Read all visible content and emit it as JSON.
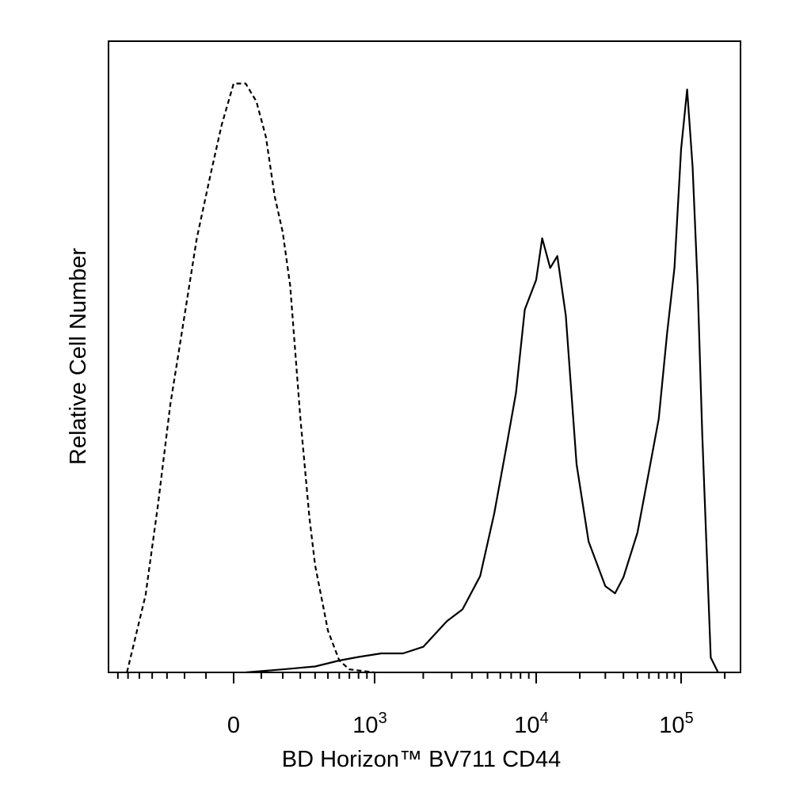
{
  "chart_data": {
    "type": "line",
    "title": "",
    "xlabel": "BD Horizon™ BV711 CD44",
    "ylabel": "Relative Cell Number",
    "x_scale": "biexponential",
    "xlim": [
      -750,
      200000
    ],
    "ylim": [
      0,
      100
    ],
    "grid": false,
    "legend": "none",
    "x_ticks": [
      {
        "value": 0,
        "label": "0"
      },
      {
        "value": 1000,
        "label": "10",
        "sup": "3"
      },
      {
        "value": 10000,
        "label": "10",
        "sup": "4"
      },
      {
        "value": 100000,
        "label": "10",
        "sup": "5"
      }
    ],
    "series": [
      {
        "style": "dashed",
        "x": [
          -610,
          -450,
          -360,
          -280,
          -200,
          -140,
          -80,
          -40,
          0,
          40,
          80,
          120,
          160,
          200,
          240,
          300,
          360,
          400,
          500,
          600,
          700,
          1000
        ],
        "y": [
          0,
          13,
          28,
          45,
          60,
          73,
          84,
          92,
          99,
          99,
          96,
          90,
          80,
          74,
          65,
          43,
          26,
          18,
          7,
          2,
          0.5,
          0
        ]
      },
      {
        "style": "solid",
        "x": [
          40,
          200,
          400,
          600,
          800,
          1100,
          1500,
          2000,
          2800,
          3500,
          4500,
          5500,
          6500,
          7500,
          8500,
          10000,
          11000,
          12500,
          14000,
          16000,
          19000,
          23000,
          30000,
          35000,
          40000,
          50000,
          60000,
          70000,
          80000,
          90000,
          100000,
          110000,
          120000,
          130000,
          140000,
          160000,
          180000
        ],
        "y": [
          0,
          0.5,
          1,
          2,
          2.6,
          3.2,
          3.2,
          4.3,
          8.6,
          10.6,
          16.2,
          26.7,
          37.5,
          47,
          61,
          66,
          73,
          68,
          70,
          60,
          35,
          22,
          14.5,
          13.3,
          16,
          23.5,
          33.8,
          42.6,
          57,
          68,
          88,
          98,
          85,
          65,
          40,
          2.5,
          0
        ]
      }
    ]
  }
}
